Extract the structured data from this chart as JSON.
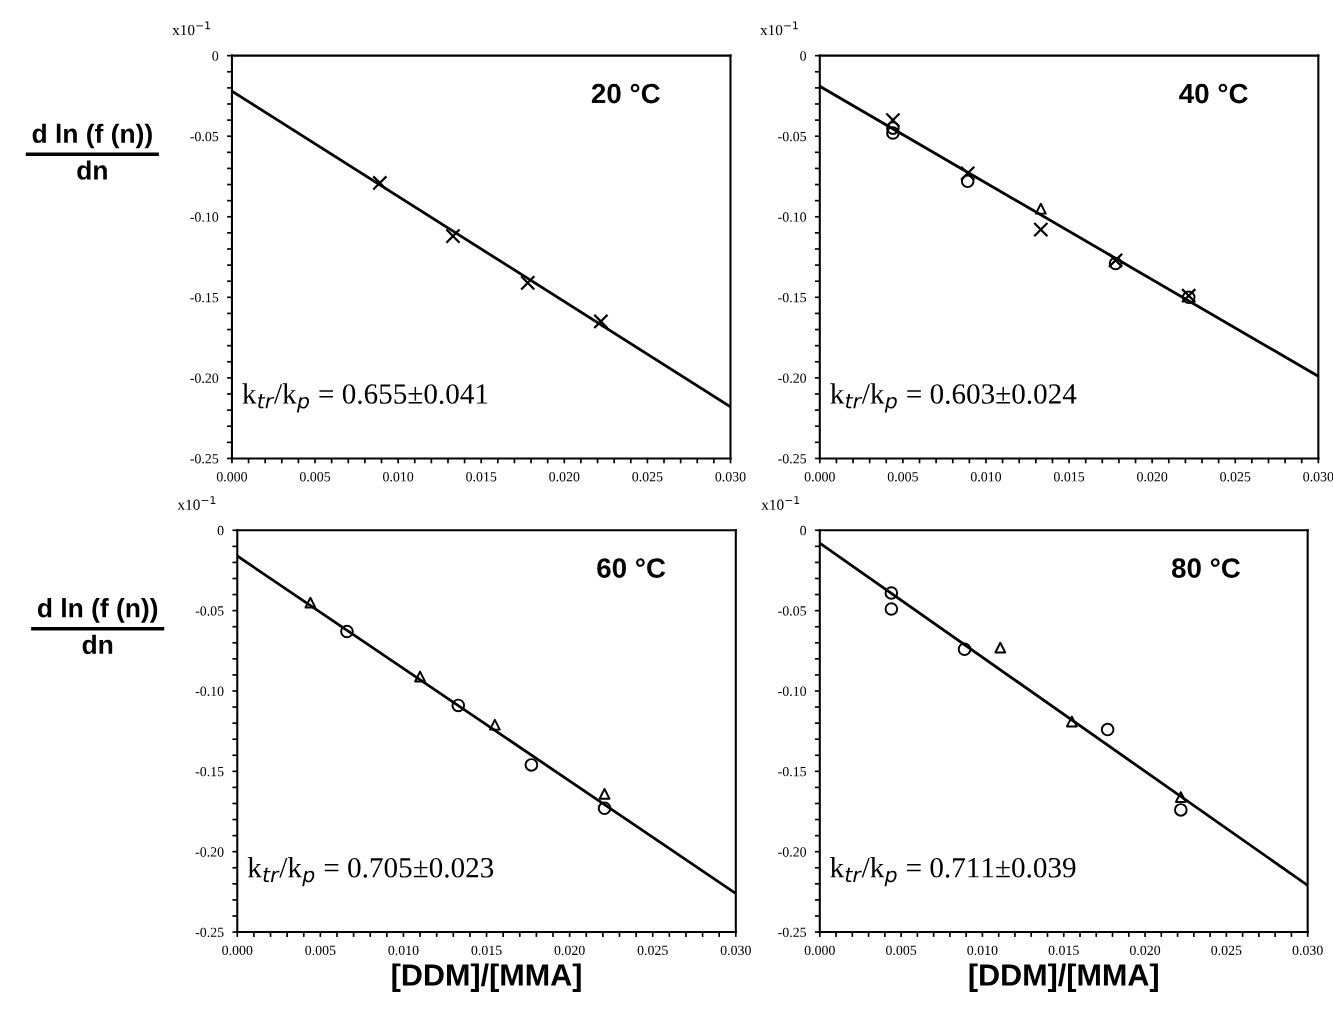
{
  "chart_data": [
    {
      "type": "scatter",
      "ylabel": "d ln (f (n))\ndn",
      "annotations": [
        "x10$^{−1}$",
        "20 °C",
        "k$_{tr}$/k$_{p}$ = 0.655±0.041"
      ],
      "xlim": [
        0,
        0.03
      ],
      "ylim": [
        -0.25,
        0
      ],
      "xticks": [
        {
          "value": 0,
          "label": "0.000"
        },
        {
          "value": 0.001,
          "label": null
        },
        {
          "value": 0.002,
          "label": null
        },
        {
          "value": 0.003,
          "label": null
        },
        {
          "value": 0.004,
          "label": null
        },
        {
          "value": 0.005,
          "label": "0.005"
        },
        {
          "value": 0.006,
          "label": null
        },
        {
          "value": 0.007,
          "label": null
        },
        {
          "value": 0.008,
          "label": null
        },
        {
          "value": 0.009,
          "label": null
        },
        {
          "value": 0.01,
          "label": "0.010"
        },
        {
          "value": 0.011,
          "label": null
        },
        {
          "value": 0.012,
          "label": null
        },
        {
          "value": 0.013,
          "label": null
        },
        {
          "value": 0.014,
          "label": null
        },
        {
          "value": 0.015,
          "label": "0.015"
        },
        {
          "value": 0.016,
          "label": null
        },
        {
          "value": 0.017,
          "label": null
        },
        {
          "value": 0.018,
          "label": null
        },
        {
          "value": 0.019,
          "label": null
        },
        {
          "value": 0.02,
          "label": "0.020"
        },
        {
          "value": 0.021,
          "label": null
        },
        {
          "value": 0.022,
          "label": null
        },
        {
          "value": 0.023,
          "label": null
        },
        {
          "value": 0.024,
          "label": null
        },
        {
          "value": 0.025,
          "label": "0.025"
        },
        {
          "value": 0.026,
          "label": null
        },
        {
          "value": 0.027,
          "label": null
        },
        {
          "value": 0.028,
          "label": null
        },
        {
          "value": 0.029,
          "label": null
        },
        {
          "value": 0.03,
          "label": "0.030"
        }
      ],
      "yticks": [
        0,
        {
          "value": -0.01,
          "label": null
        },
        {
          "value": -0.02,
          "label": null
        },
        {
          "value": -0.03,
          "label": null
        },
        {
          "value": -0.04,
          "label": null
        },
        {
          "value": -0.05,
          "label": "-0.05"
        },
        {
          "value": -0.06,
          "label": null
        },
        {
          "value": -0.07,
          "label": null
        },
        {
          "value": -0.08,
          "label": null
        },
        {
          "value": -0.09,
          "label": null
        },
        {
          "value": -0.1,
          "label": "-0.10"
        },
        {
          "value": -0.11,
          "label": null
        },
        {
          "value": -0.12,
          "label": null
        },
        {
          "value": -0.13,
          "label": null
        },
        {
          "value": -0.14,
          "label": null
        },
        {
          "value": -0.15,
          "label": "-0.15"
        },
        {
          "value": -0.16,
          "label": null
        },
        {
          "value": -0.17,
          "label": null
        },
        {
          "value": -0.18,
          "label": null
        },
        {
          "value": -0.19,
          "label": null
        },
        {
          "value": -0.2,
          "label": "-0.20"
        },
        {
          "value": -0.21,
          "label": null
        },
        {
          "value": -0.22,
          "label": null
        },
        {
          "value": -0.23,
          "label": null
        },
        {
          "value": -0.24,
          "label": null
        },
        {
          "value": -0.25,
          "label": "-0.25"
        }
      ],
      "series": [
        {
          "type": "line",
          "color": "#000000",
          "marker": "none",
          "x": [
            0,
            0.03
          ],
          "values": [
            -0.022,
            -0.218
          ]
        },
        {
          "color": "#000000",
          "marker": "cross",
          "x": [
            0.0089,
            0.0133,
            0.0178,
            0.0222
          ],
          "values": [
            -0.079,
            -0.112,
            -0.141,
            -0.165
          ]
        }
      ]
    },
    {
      "type": "scatter",
      "annotations": [
        "x10$^{−1}$",
        "40 °C",
        "k$_{tr}$/k$_{p}$ = 0.603±0.024"
      ],
      "xlim": [
        0,
        0.03
      ],
      "ylim": [
        -0.25,
        0
      ],
      "xticks": [
        {
          "value": 0,
          "label": "0.000"
        },
        {
          "value": 0.001,
          "label": null
        },
        {
          "value": 0.002,
          "label": null
        },
        {
          "value": 0.003,
          "label": null
        },
        {
          "value": 0.004,
          "label": null
        },
        {
          "value": 0.005,
          "label": "0.005"
        },
        {
          "value": 0.006,
          "label": null
        },
        {
          "value": 0.007,
          "label": null
        },
        {
          "value": 0.008,
          "label": null
        },
        {
          "value": 0.009,
          "label": null
        },
        {
          "value": 0.01,
          "label": "0.010"
        },
        {
          "value": 0.011,
          "label": null
        },
        {
          "value": 0.012,
          "label": null
        },
        {
          "value": 0.013,
          "label": null
        },
        {
          "value": 0.014,
          "label": null
        },
        {
          "value": 0.015,
          "label": "0.015"
        },
        {
          "value": 0.016,
          "label": null
        },
        {
          "value": 0.017,
          "label": null
        },
        {
          "value": 0.018,
          "label": null
        },
        {
          "value": 0.019,
          "label": null
        },
        {
          "value": 0.02,
          "label": "0.020"
        },
        {
          "value": 0.021,
          "label": null
        },
        {
          "value": 0.022,
          "label": null
        },
        {
          "value": 0.023,
          "label": null
        },
        {
          "value": 0.024,
          "label": null
        },
        {
          "value": 0.025,
          "label": "0.025"
        },
        {
          "value": 0.026,
          "label": null
        },
        {
          "value": 0.027,
          "label": null
        },
        {
          "value": 0.028,
          "label": null
        },
        {
          "value": 0.029,
          "label": null
        },
        {
          "value": 0.03,
          "label": "0.030"
        }
      ],
      "yticks": [
        0,
        {
          "value": -0.01,
          "label": null
        },
        {
          "value": -0.02,
          "label": null
        },
        {
          "value": -0.03,
          "label": null
        },
        {
          "value": -0.04,
          "label": null
        },
        {
          "value": -0.05,
          "label": "-0.05"
        },
        {
          "value": -0.06,
          "label": null
        },
        {
          "value": -0.07,
          "label": null
        },
        {
          "value": -0.08,
          "label": null
        },
        {
          "value": -0.09,
          "label": null
        },
        {
          "value": -0.1,
          "label": "-0.10"
        },
        {
          "value": -0.11,
          "label": null
        },
        {
          "value": -0.12,
          "label": null
        },
        {
          "value": -0.13,
          "label": null
        },
        {
          "value": -0.14,
          "label": null
        },
        {
          "value": -0.15,
          "label": "-0.15"
        },
        {
          "value": -0.16,
          "label": null
        },
        {
          "value": -0.17,
          "label": null
        },
        {
          "value": -0.18,
          "label": null
        },
        {
          "value": -0.19,
          "label": null
        },
        {
          "value": -0.2,
          "label": "-0.20"
        },
        {
          "value": -0.21,
          "label": null
        },
        {
          "value": -0.22,
          "label": null
        },
        {
          "value": -0.23,
          "label": null
        },
        {
          "value": -0.24,
          "label": null
        },
        {
          "value": -0.25,
          "label": "-0.25"
        }
      ],
      "series": [
        {
          "type": "line",
          "color": "#000000",
          "marker": "none",
          "x": [
            0,
            0.03
          ],
          "values": [
            -0.019,
            -0.199
          ]
        },
        {
          "color": "#000000",
          "marker": "cross",
          "x": [
            0.0044,
            0.0089,
            0.0133,
            0.0178,
            0.0222
          ],
          "values": [
            -0.04,
            -0.073,
            -0.108,
            -0.127,
            -0.149
          ]
        },
        {
          "color": "#000000",
          "marker": "circle",
          "x": [
            0.0044,
            0.0044,
            0.0089,
            0.0178,
            0.0222
          ],
          "values": [
            -0.045,
            -0.048,
            -0.078,
            -0.129,
            -0.15
          ]
        },
        {
          "color": "#000000",
          "marker": "triangle",
          "x": [
            0.0133
          ],
          "values": [
            -0.095
          ]
        }
      ]
    },
    {
      "type": "scatter",
      "ylabel": "d ln (f (n))\ndn",
      "xlabel": "[DDM]/[MMA]",
      "annotations": [
        "x10$^{−1}$",
        "60 °C",
        "k$_{tr}$/k$_{p}$ = 0.705±0.023"
      ],
      "xlim": [
        0,
        0.03
      ],
      "ylim": [
        -0.25,
        0
      ],
      "xticks": [
        {
          "value": 0,
          "label": "0.000"
        },
        {
          "value": 0.001,
          "label": null
        },
        {
          "value": 0.002,
          "label": null
        },
        {
          "value": 0.003,
          "label": null
        },
        {
          "value": 0.004,
          "label": null
        },
        {
          "value": 0.005,
          "label": "0.005"
        },
        {
          "value": 0.006,
          "label": null
        },
        {
          "value": 0.007,
          "label": null
        },
        {
          "value": 0.008,
          "label": null
        },
        {
          "value": 0.009,
          "label": null
        },
        {
          "value": 0.01,
          "label": "0.010"
        },
        {
          "value": 0.011,
          "label": null
        },
        {
          "value": 0.012,
          "label": null
        },
        {
          "value": 0.013,
          "label": null
        },
        {
          "value": 0.014,
          "label": null
        },
        {
          "value": 0.015,
          "label": "0.015"
        },
        {
          "value": 0.016,
          "label": null
        },
        {
          "value": 0.017,
          "label": null
        },
        {
          "value": 0.018,
          "label": null
        },
        {
          "value": 0.019,
          "label": null
        },
        {
          "value": 0.02,
          "label": "0.020"
        },
        {
          "value": 0.021,
          "label": null
        },
        {
          "value": 0.022,
          "label": null
        },
        {
          "value": 0.023,
          "label": null
        },
        {
          "value": 0.024,
          "label": null
        },
        {
          "value": 0.025,
          "label": "0.025"
        },
        {
          "value": 0.026,
          "label": null
        },
        {
          "value": 0.027,
          "label": null
        },
        {
          "value": 0.028,
          "label": null
        },
        {
          "value": 0.029,
          "label": null
        },
        {
          "value": 0.03,
          "label": "0.030"
        }
      ],
      "yticks": [
        0,
        {
          "value": -0.01,
          "label": null
        },
        {
          "value": -0.02,
          "label": null
        },
        {
          "value": -0.03,
          "label": null
        },
        {
          "value": -0.04,
          "label": null
        },
        {
          "value": -0.05,
          "label": "-0.05"
        },
        {
          "value": -0.06,
          "label": null
        },
        {
          "value": -0.07,
          "label": null
        },
        {
          "value": -0.08,
          "label": null
        },
        {
          "value": -0.09,
          "label": null
        },
        {
          "value": -0.1,
          "label": "-0.10"
        },
        {
          "value": -0.11,
          "label": null
        },
        {
          "value": -0.12,
          "label": null
        },
        {
          "value": -0.13,
          "label": null
        },
        {
          "value": -0.14,
          "label": null
        },
        {
          "value": -0.15,
          "label": "-0.15"
        },
        {
          "value": -0.16,
          "label": null
        },
        {
          "value": -0.17,
          "label": null
        },
        {
          "value": -0.18,
          "label": null
        },
        {
          "value": -0.19,
          "label": null
        },
        {
          "value": -0.2,
          "label": "-0.20"
        },
        {
          "value": -0.21,
          "label": null
        },
        {
          "value": -0.22,
          "label": null
        },
        {
          "value": -0.23,
          "label": null
        },
        {
          "value": -0.24,
          "label": null
        },
        {
          "value": -0.25,
          "label": "-0.25"
        }
      ],
      "series": [
        {
          "type": "line",
          "color": "#000000",
          "marker": "none",
          "x": [
            0,
            0.03
          ],
          "values": [
            -0.016,
            -0.226
          ]
        },
        {
          "color": "#000000",
          "marker": "triangle",
          "x": [
            0.0044,
            0.011,
            0.0155,
            0.0221
          ],
          "values": [
            -0.045,
            -0.091,
            -0.121,
            -0.164
          ]
        },
        {
          "color": "#000000",
          "marker": "circle",
          "x": [
            0.0066,
            0.0133,
            0.0177,
            0.0221
          ],
          "values": [
            -0.063,
            -0.109,
            -0.146,
            -0.173
          ]
        }
      ]
    },
    {
      "type": "scatter",
      "xlabel": "[DDM]/[MMA]",
      "annotations": [
        "x10$^{−1}$",
        "80 °C",
        "k$_{tr}$/k$_{p}$ = 0.711±0.039"
      ],
      "xlim": [
        0,
        0.03
      ],
      "ylim": [
        -0.25,
        0
      ],
      "xticks": [
        {
          "value": 0,
          "label": "0.000"
        },
        {
          "value": 0.001,
          "label": null
        },
        {
          "value": 0.002,
          "label": null
        },
        {
          "value": 0.003,
          "label": null
        },
        {
          "value": 0.004,
          "label": null
        },
        {
          "value": 0.005,
          "label": "0.005"
        },
        {
          "value": 0.006,
          "label": null
        },
        {
          "value": 0.007,
          "label": null
        },
        {
          "value": 0.008,
          "label": null
        },
        {
          "value": 0.009,
          "label": null
        },
        {
          "value": 0.01,
          "label": "0.010"
        },
        {
          "value": 0.011,
          "label": null
        },
        {
          "value": 0.012,
          "label": null
        },
        {
          "value": 0.013,
          "label": null
        },
        {
          "value": 0.014,
          "label": null
        },
        {
          "value": 0.015,
          "label": "0.015"
        },
        {
          "value": 0.016,
          "label": null
        },
        {
          "value": 0.017,
          "label": null
        },
        {
          "value": 0.018,
          "label": null
        },
        {
          "value": 0.019,
          "label": null
        },
        {
          "value": 0.02,
          "label": "0.020"
        },
        {
          "value": 0.021,
          "label": null
        },
        {
          "value": 0.022,
          "label": null
        },
        {
          "value": 0.023,
          "label": null
        },
        {
          "value": 0.024,
          "label": null
        },
        {
          "value": 0.025,
          "label": "0.025"
        },
        {
          "value": 0.026,
          "label": null
        },
        {
          "value": 0.027,
          "label": null
        },
        {
          "value": 0.028,
          "label": null
        },
        {
          "value": 0.029,
          "label": null
        },
        {
          "value": 0.03,
          "label": "0.030"
        }
      ],
      "yticks": [
        0,
        {
          "value": -0.01,
          "label": null
        },
        {
          "value": -0.02,
          "label": null
        },
        {
          "value": -0.03,
          "label": null
        },
        {
          "value": -0.04,
          "label": null
        },
        {
          "value": -0.05,
          "label": "-0.05"
        },
        {
          "value": -0.06,
          "label": null
        },
        {
          "value": -0.07,
          "label": null
        },
        {
          "value": -0.08,
          "label": null
        },
        {
          "value": -0.09,
          "label": null
        },
        {
          "value": -0.1,
          "label": "-0.10"
        },
        {
          "value": -0.11,
          "label": null
        },
        {
          "value": -0.12,
          "label": null
        },
        {
          "value": -0.13,
          "label": null
        },
        {
          "value": -0.14,
          "label": null
        },
        {
          "value": -0.15,
          "label": "-0.15"
        },
        {
          "value": -0.16,
          "label": null
        },
        {
          "value": -0.17,
          "label": null
        },
        {
          "value": -0.18,
          "label": null
        },
        {
          "value": -0.19,
          "label": null
        },
        {
          "value": -0.2,
          "label": "-0.20"
        },
        {
          "value": -0.21,
          "label": null
        },
        {
          "value": -0.22,
          "label": null
        },
        {
          "value": -0.23,
          "label": null
        },
        {
          "value": -0.24,
          "label": null
        },
        {
          "value": -0.25,
          "label": "-0.25"
        }
      ],
      "series": [
        {
          "type": "line",
          "color": "#000000",
          "marker": "none",
          "x": [
            0,
            0.03
          ],
          "values": [
            -0.008,
            -0.221
          ]
        },
        {
          "color": "#000000",
          "marker": "circle",
          "x": [
            0.0044,
            0.0044,
            0.0089,
            0.0177,
            0.0222
          ],
          "values": [
            -0.039,
            -0.049,
            -0.074,
            -0.124,
            -0.174
          ]
        },
        {
          "color": "#000000",
          "marker": "triangle",
          "x": [
            0.0111,
            0.0155,
            0.0222
          ],
          "values": [
            -0.073,
            -0.119,
            -0.166
          ]
        }
      ]
    }
  ]
}
